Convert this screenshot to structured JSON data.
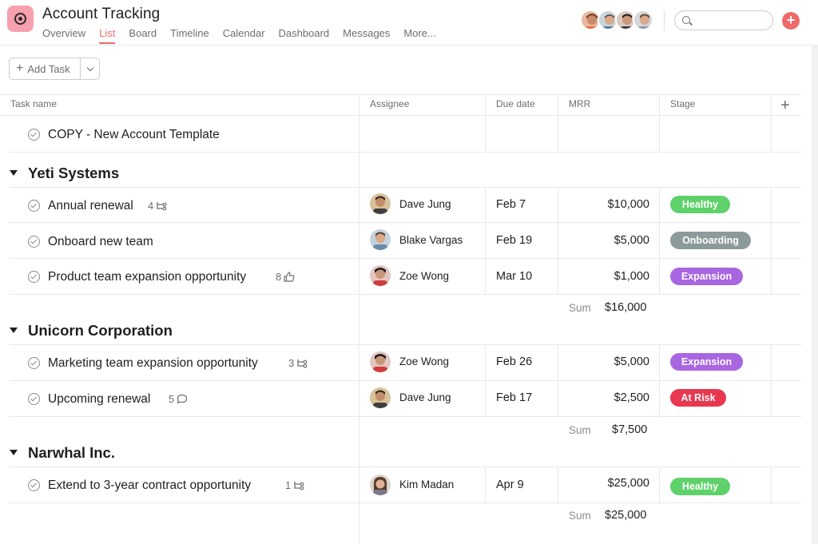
{
  "header": {
    "title": "Account Tracking",
    "tabs": [
      {
        "label": "Overview"
      },
      {
        "label": "List"
      },
      {
        "label": "Board"
      },
      {
        "label": "Timeline"
      },
      {
        "label": "Calendar"
      },
      {
        "label": "Dashboard"
      },
      {
        "label": "Messages"
      },
      {
        "label": "More..."
      }
    ],
    "active_tab": "List",
    "search": {
      "value": "",
      "placeholder": ""
    }
  },
  "toolbar": {
    "add_task_label": "Add Task"
  },
  "columns": {
    "task": "Task name",
    "assignee": "Assignee",
    "due": "Due date",
    "mrr": "MRR",
    "stage": "Stage"
  },
  "template_task": "COPY - New Account Template",
  "sections": [
    {
      "name": "Yeti Systems",
      "tasks": [
        {
          "name": "Annual renewal",
          "meta_count": "4",
          "meta_icon": "subtask-icon",
          "assignee": "Dave Jung",
          "due": "Feb 7",
          "mrr": "$10,000",
          "stage": "Healthy"
        },
        {
          "name": "Onboard new team",
          "meta_count": "",
          "meta_icon": "",
          "assignee": "Blake Vargas",
          "due": "Feb 19",
          "mrr": "$5,000",
          "stage": "Onboarding"
        },
        {
          "name": "Product team expansion opportunity",
          "meta_count": "8",
          "meta_icon": "thumbs-up-icon",
          "assignee": "Zoe Wong",
          "due": "Mar 10",
          "mrr": "$1,000",
          "stage": "Expansion"
        }
      ],
      "sum_label": "Sum",
      "sum": "$16,000"
    },
    {
      "name": "Unicorn Corporation",
      "tasks": [
        {
          "name": "Marketing team expansion opportunity",
          "meta_count": "3",
          "meta_icon": "subtask-icon",
          "assignee": "Zoe Wong",
          "due": "Feb 26",
          "mrr": "$5,000",
          "stage": "Expansion"
        },
        {
          "name": "Upcoming renewal",
          "meta_count": "5",
          "meta_icon": "comment-icon",
          "assignee": "Dave Jung",
          "due": "Feb 17",
          "mrr": "$2,500",
          "stage": "At Risk"
        }
      ],
      "sum_label": "Sum",
      "sum": "$7,500"
    },
    {
      "name": "Narwhal Inc.",
      "tasks": [
        {
          "name": "Extend to 3-year contract opportunity",
          "meta_count": "1",
          "meta_icon": "subtask-icon",
          "assignee": "Kim Madan",
          "due": "Apr 9",
          "mrr": "$25,000",
          "stage": "Healthy"
        }
      ],
      "sum_label": "Sum",
      "sum": "$25,000"
    }
  ],
  "stage_colors": {
    "Healthy": "#5fd16b",
    "Onboarding": "#8d9a9c",
    "Expansion": "#a866e0",
    "At Risk": "#e8384f"
  },
  "accent_color": "#f06a6a"
}
